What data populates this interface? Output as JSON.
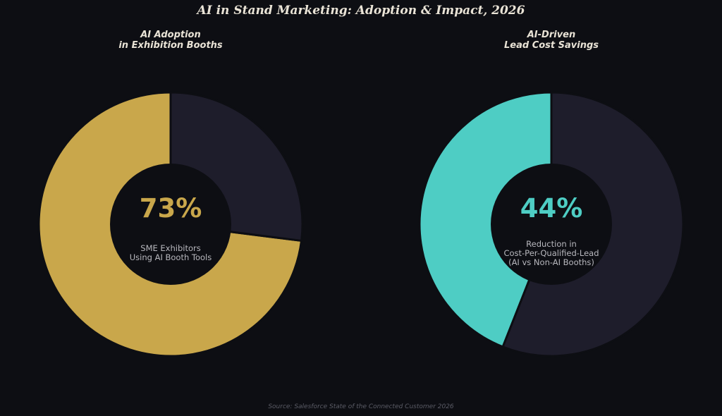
{
  "title": "AI in Stand Marketing: Adoption & Impact, 2026",
  "source": "Source: Salesforce State of the Connected Customer 2026",
  "colors": {
    "background": "#0d0e13",
    "remainder": "#1e1d2b",
    "gold": "#c9a74b",
    "teal": "#4ecdc4",
    "hole": "#0d0e13"
  },
  "chart_data": [
    {
      "type": "pie",
      "title": [
        "AI Adoption",
        "in Exhibition Booths"
      ],
      "center_value": "73%",
      "center_label": [
        "SME Exhibitors",
        "Using AI Booth Tools"
      ],
      "slices": [
        {
          "value": 73,
          "color": "#c9a74b"
        },
        {
          "value": 27,
          "color": "#1e1d2b"
        }
      ]
    },
    {
      "type": "pie",
      "title": [
        "AI-Driven",
        "Lead Cost Savings"
      ],
      "center_value": "44%",
      "center_label": [
        "Reduction in",
        "Cost-Per-Qualified-Lead",
        "(AI vs Non-AI Booths)"
      ],
      "slices": [
        {
          "value": 44,
          "color": "#4ecdc4"
        },
        {
          "value": 56,
          "color": "#1e1d2b"
        }
      ]
    }
  ]
}
